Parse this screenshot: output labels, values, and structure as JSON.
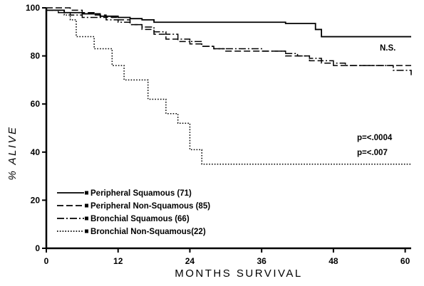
{
  "chart_data": {
    "type": "line",
    "title": "",
    "xlabel": "MONTHS SURVIVAL",
    "ylabel": "% ALIVE",
    "xlim": [
      0,
      61
    ],
    "ylim": [
      0,
      100
    ],
    "x_ticks": [
      "0",
      "12",
      "24",
      "36",
      "48",
      "60"
    ],
    "y_ticks": [
      "0",
      "20",
      "40",
      "60",
      "80",
      "100"
    ],
    "grid": false,
    "legend_position": "bottom-left",
    "annotations": [
      "N.S.",
      "p=<.0004",
      "p=<.007"
    ],
    "series": [
      {
        "name": "Peripheral Squamous (71)",
        "style": "solid",
        "x": [
          0,
          3,
          6,
          9,
          12,
          14,
          16,
          18,
          30,
          40,
          44,
          45,
          46,
          48,
          61
        ],
        "y": [
          99,
          98,
          97.5,
          96.5,
          96,
          95.5,
          95,
          94,
          94,
          93.5,
          93.5,
          91,
          88,
          88,
          88
        ]
      },
      {
        "name": "Peripheral Non-Squamous (85)",
        "style": "dashed",
        "x": [
          0,
          3,
          4,
          6,
          8,
          10,
          12,
          14,
          16,
          18,
          20,
          22,
          24,
          26,
          28,
          30,
          40,
          44,
          46,
          48,
          58,
          61
        ],
        "y": [
          100,
          100,
          99,
          98,
          97,
          96,
          95,
          93,
          91,
          89,
          87,
          86,
          85,
          84,
          83,
          82,
          80,
          78,
          77,
          76,
          76,
          76
        ]
      },
      {
        "name": "Bronchial Squamous (66)",
        "style": "dashdot",
        "x": [
          0,
          2,
          4,
          6,
          8,
          10,
          12,
          14,
          16,
          18,
          20,
          22,
          24,
          26,
          28,
          36,
          40,
          42,
          44,
          46,
          48,
          50,
          56,
          58,
          61
        ],
        "y": [
          99,
          98,
          97,
          96,
          96,
          95,
          94,
          93,
          92,
          90,
          89,
          87,
          86,
          84,
          83,
          82,
          81,
          80,
          79,
          78,
          77,
          76,
          76,
          74,
          72
        ]
      },
      {
        "name": "Bronchial Non-Squamous(22)",
        "style": "dotted",
        "x": [
          0,
          3,
          4,
          5,
          8,
          11,
          13,
          17,
          20,
          22,
          24,
          26,
          61
        ],
        "y": [
          99,
          97,
          95,
          88,
          83,
          76,
          70,
          62,
          56,
          52,
          41,
          35,
          35
        ]
      }
    ]
  }
}
